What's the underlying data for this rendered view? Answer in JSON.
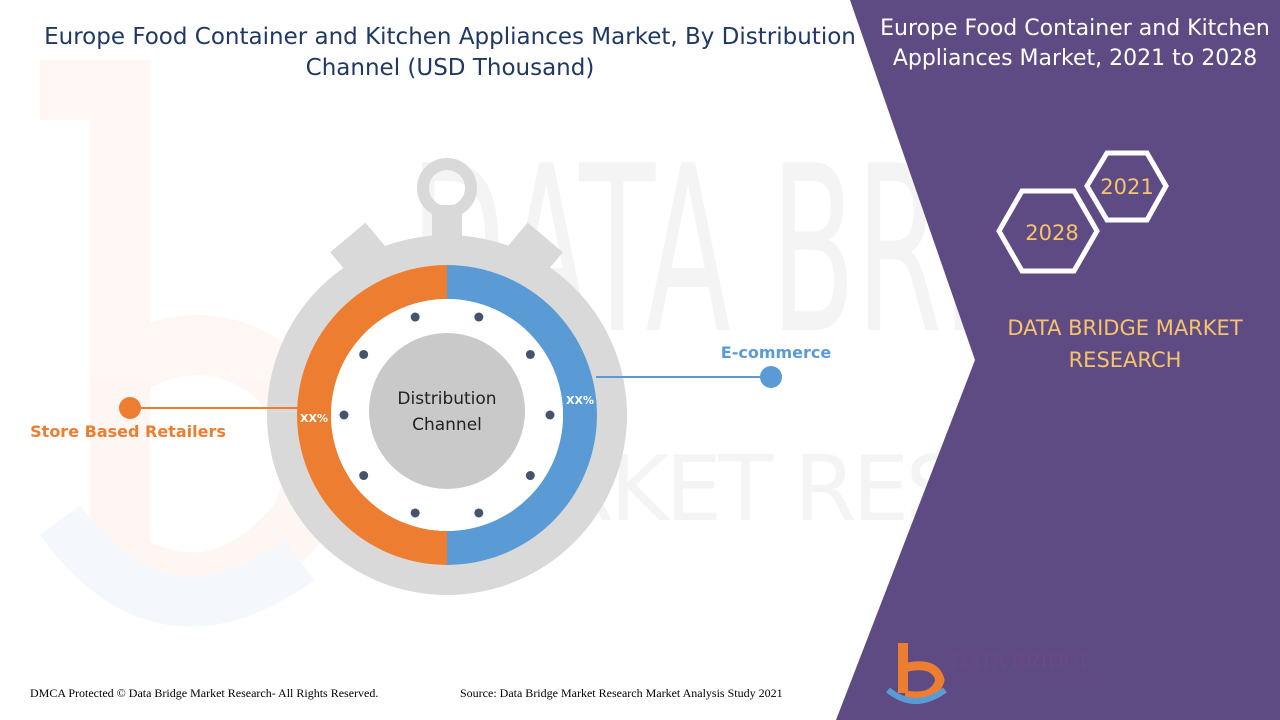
{
  "header": {
    "title": "Europe Food Container and Kitchen Appliances Market, By Distribution Channel (USD Thousand)"
  },
  "side_panel": {
    "title": "Europe Food Container and Kitchen Appliances Market, 2021 to 2028",
    "hexagons": {
      "back": "2021",
      "front": "2028"
    },
    "brand": "DATA BRIDGE MARKET RESEARCH"
  },
  "chart_data": {
    "type": "pie",
    "title": "Europe Food Container and Kitchen Appliances Market, By Distribution Channel (USD Thousand)",
    "center_label": [
      "Distribution",
      "Channel"
    ],
    "slices": [
      {
        "name": "E-commerce",
        "label": "XX%",
        "fraction": 0.5,
        "color": "#5b9bd5"
      },
      {
        "name": "Store Based Retailers",
        "label": "XX%",
        "fraction": 0.5,
        "color": "#ed7d31"
      }
    ]
  },
  "footer": {
    "copyright": "DMCA Protected © Data Bridge Market Research- All Rights Reserved.",
    "source": "Source: Data Bridge Market Research Market Analysis Study 2021"
  },
  "logo": {
    "name": "DATA BRIDGE",
    "tagline": "MARKET RESEARCH"
  },
  "colors": {
    "panel": "#5e4b84",
    "brand_text": "#f7c46c",
    "title_text": "#1f3864",
    "watch_gray": "#d9d9d9",
    "inner_gray": "#c9c9c9",
    "dot": "#44546a"
  }
}
